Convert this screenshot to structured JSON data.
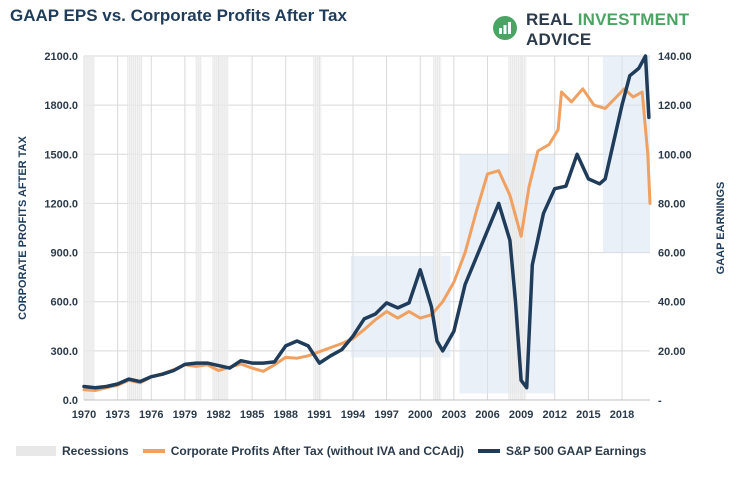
{
  "brand": {
    "name_prefix": "REAL ",
    "name_accent": "INVESTMENT",
    "name_suffix": " ADVICE",
    "icon": "chart-bars-icon",
    "color": "#4aa564"
  },
  "chart_data": {
    "type": "line",
    "title": "GAAP EPS vs. Corporate Profits After Tax",
    "xlabel": "",
    "ylabel_left": "CORPORATE PROFITS AFTER TAX",
    "ylabel_right": "GAAP EARNINGS",
    "xlim": [
      1970,
      2020.5
    ],
    "ylim_left": [
      0,
      2100
    ],
    "ylim_right": [
      0,
      140
    ],
    "x_ticks": [
      "1970",
      "1973",
      "1976",
      "1979",
      "1982",
      "1985",
      "1988",
      "1991",
      "1994",
      "1997",
      "2000",
      "2003",
      "2006",
      "2009",
      "2012",
      "2015",
      "2018"
    ],
    "y_ticks_left": [
      "0.0",
      "300.0",
      "600.0",
      "900.0",
      "1200.0",
      "1500.0",
      "1800.0",
      "2100.0"
    ],
    "y_ticks_right": [
      "-",
      "20.00",
      "40.00",
      "60.00",
      "80.00",
      "100.00",
      "120.00",
      "140.00"
    ],
    "grid": true,
    "recessions": [
      [
        1970.0,
        1970.9
      ],
      [
        1973.9,
        1975.2
      ],
      [
        1980.0,
        1980.5
      ],
      [
        1981.5,
        1982.9
      ],
      [
        1990.5,
        1991.2
      ],
      [
        2001.2,
        2001.9
      ],
      [
        2007.9,
        2009.5
      ]
    ],
    "shaded_boxes": [
      {
        "x": [
          1993.8,
          2002.7
        ],
        "y_left": [
          260,
          880
        ]
      },
      {
        "x": [
          2003.5,
          2012.0
        ],
        "y_left": [
          40,
          1500
        ]
      },
      {
        "x": [
          2016.3,
          2020.5
        ],
        "y_left": [
          900,
          2100
        ]
      }
    ],
    "legend_position": "bottom",
    "series": [
      {
        "name": "Corporate Profits After Tax (without IVA and CCAdj)",
        "axis": "left",
        "color": "#f0a060",
        "points": [
          [
            1970,
            62
          ],
          [
            1971,
            58
          ],
          [
            1972,
            75
          ],
          [
            1973,
            90
          ],
          [
            1974,
            120
          ],
          [
            1975,
            105
          ],
          [
            1976,
            140
          ],
          [
            1977,
            160
          ],
          [
            1978,
            185
          ],
          [
            1979,
            215
          ],
          [
            1980,
            205
          ],
          [
            1981,
            215
          ],
          [
            1982,
            180
          ],
          [
            1983,
            200
          ],
          [
            1984,
            220
          ],
          [
            1985,
            195
          ],
          [
            1986,
            175
          ],
          [
            1987,
            215
          ],
          [
            1988,
            260
          ],
          [
            1989,
            255
          ],
          [
            1990,
            270
          ],
          [
            1991,
            295
          ],
          [
            1992,
            320
          ],
          [
            1993,
            345
          ],
          [
            1994,
            375
          ],
          [
            1995,
            430
          ],
          [
            1996,
            490
          ],
          [
            1997,
            540
          ],
          [
            1998,
            500
          ],
          [
            1999,
            540
          ],
          [
            2000,
            500
          ],
          [
            2001,
            520
          ],
          [
            2002,
            600
          ],
          [
            2003,
            720
          ],
          [
            2004,
            900
          ],
          [
            2005,
            1150
          ],
          [
            2006,
            1380
          ],
          [
            2007,
            1400
          ],
          [
            2008,
            1250
          ],
          [
            2009,
            1000
          ],
          [
            2009.7,
            1300
          ],
          [
            2010.5,
            1520
          ],
          [
            2011.5,
            1560
          ],
          [
            2012.3,
            1650
          ],
          [
            2012.6,
            1880
          ],
          [
            2013.5,
            1820
          ],
          [
            2014.5,
            1900
          ],
          [
            2015.5,
            1800
          ],
          [
            2016.5,
            1780
          ],
          [
            2017.5,
            1850
          ],
          [
            2018.2,
            1900
          ],
          [
            2019,
            1850
          ],
          [
            2019.8,
            1880
          ],
          [
            2020.3,
            1500
          ],
          [
            2020.5,
            1200
          ]
        ]
      },
      {
        "name": "S&P 500 GAAP Earnings",
        "axis": "right",
        "color": "#1f3c5a",
        "points": [
          [
            1970,
            5.5
          ],
          [
            1971,
            5.0
          ],
          [
            1972,
            5.5
          ],
          [
            1973,
            6.5
          ],
          [
            1974,
            8.5
          ],
          [
            1975,
            7.5
          ],
          [
            1976,
            9.5
          ],
          [
            1977,
            10.5
          ],
          [
            1978,
            12
          ],
          [
            1979,
            14.5
          ],
          [
            1980,
            15
          ],
          [
            1981,
            15
          ],
          [
            1982,
            14
          ],
          [
            1983,
            13
          ],
          [
            1984,
            16
          ],
          [
            1985,
            15
          ],
          [
            1986,
            15
          ],
          [
            1987,
            15.5
          ],
          [
            1988,
            22
          ],
          [
            1989,
            24
          ],
          [
            1990,
            22
          ],
          [
            1991,
            15
          ],
          [
            1992,
            18
          ],
          [
            1993,
            20.5
          ],
          [
            1994,
            26
          ],
          [
            1995,
            33
          ],
          [
            1996,
            35
          ],
          [
            1997,
            39.5
          ],
          [
            1998,
            37.5
          ],
          [
            1999,
            39.5
          ],
          [
            2000,
            53
          ],
          [
            2001,
            38
          ],
          [
            2001.5,
            24
          ],
          [
            2002,
            20
          ],
          [
            2003,
            28
          ],
          [
            2004,
            47
          ],
          [
            2005,
            58
          ],
          [
            2006,
            69
          ],
          [
            2007,
            80
          ],
          [
            2008,
            65
          ],
          [
            2008.5,
            40
          ],
          [
            2009,
            8
          ],
          [
            2009.5,
            5
          ],
          [
            2010,
            55
          ],
          [
            2011,
            76
          ],
          [
            2012,
            86
          ],
          [
            2013,
            87
          ],
          [
            2014,
            100
          ],
          [
            2015,
            90
          ],
          [
            2016,
            88
          ],
          [
            2016.5,
            90
          ],
          [
            2017,
            100
          ],
          [
            2018,
            120
          ],
          [
            2018.7,
            132
          ],
          [
            2019.5,
            135
          ],
          [
            2020.1,
            140
          ],
          [
            2020.4,
            115
          ]
        ]
      }
    ]
  }
}
